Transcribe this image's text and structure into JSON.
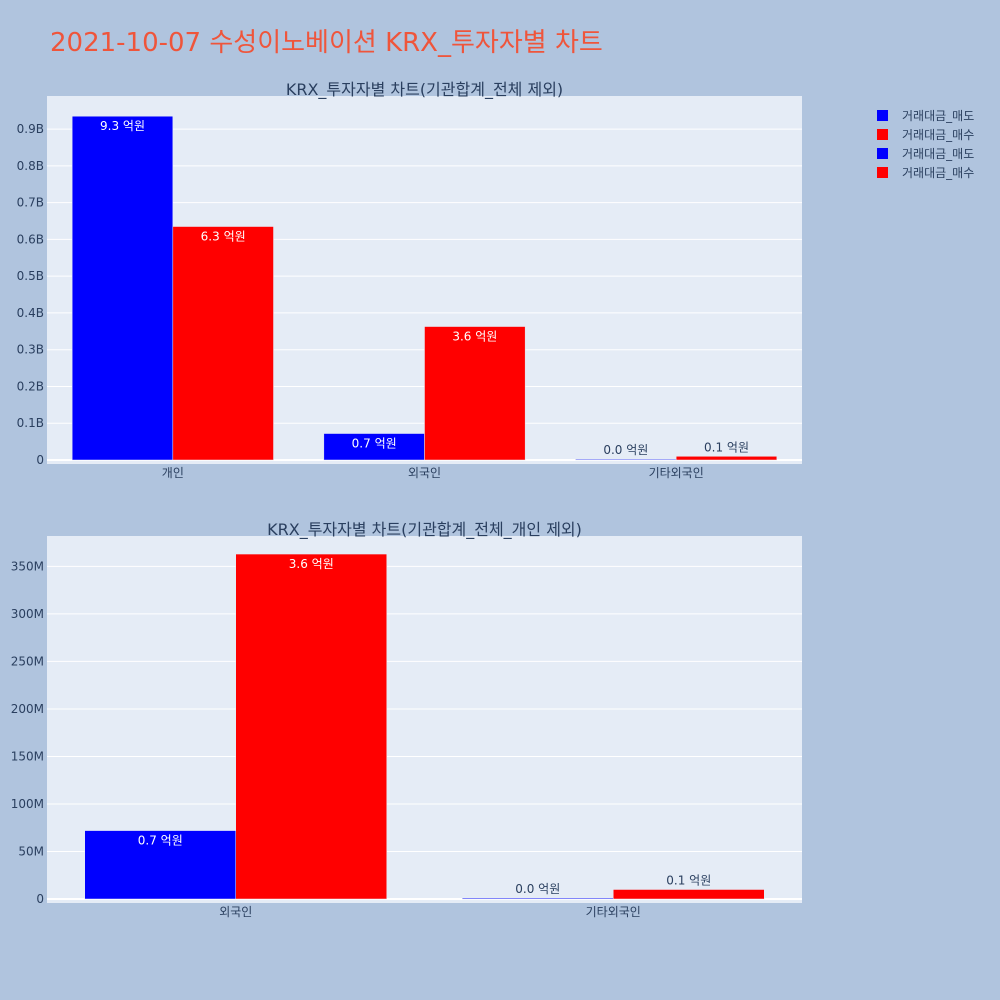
{
  "title": "2021-10-07 수성이노베이션 KRX_투자자별 차트",
  "legend": [
    {
      "name": "거래대금_매도",
      "color": "#0000ff"
    },
    {
      "name": "거래대금_매수",
      "color": "#ff0000"
    },
    {
      "name": "거래대금_매도",
      "color": "#0000ff"
    },
    {
      "name": "거래대금_매수",
      "color": "#ff0000"
    }
  ],
  "chart_data": [
    {
      "type": "bar",
      "title": "KRX_투자자별 차트(기관합계_전체 제외)",
      "categories": [
        "개인",
        "외국인",
        "기타외국인"
      ],
      "series": [
        {
          "name": "거래대금_매도",
          "color": "#0000ff",
          "values": [
            935000000,
            72000000,
            1000000
          ],
          "labels": [
            "9.3 억원",
            "0.7 억원",
            "0.0 억원"
          ]
        },
        {
          "name": "거래대금_매수",
          "color": "#ff0000",
          "values": [
            635000000,
            363000000,
            10000000
          ],
          "labels": [
            "6.3 억원",
            "3.6 억원",
            "0.1 억원"
          ]
        }
      ],
      "ylim": [
        0,
        990000000
      ],
      "yticks": [
        0,
        100000000,
        200000000,
        300000000,
        400000000,
        500000000,
        600000000,
        700000000,
        800000000,
        900000000
      ],
      "yticklabels": [
        "0",
        "0.1B",
        "0.2B",
        "0.3B",
        "0.4B",
        "0.5B",
        "0.6B",
        "0.7B",
        "0.8B",
        "0.9B"
      ],
      "grid": true
    },
    {
      "type": "bar",
      "title": "KRX_투자자별 차트(기관합계_전체_개인 제외)",
      "categories": [
        "외국인",
        "기타외국인"
      ],
      "series": [
        {
          "name": "거래대금_매도",
          "color": "#0000ff",
          "values": [
            72000000,
            1000000
          ],
          "labels": [
            "0.7 억원",
            "0.0 억원"
          ]
        },
        {
          "name": "거래대금_매수",
          "color": "#ff0000",
          "values": [
            363000000,
            10000000
          ],
          "labels": [
            "3.6 억원",
            "0.1 억원"
          ]
        }
      ],
      "ylim": [
        0,
        382000000
      ],
      "yticks": [
        0,
        50000000,
        100000000,
        150000000,
        200000000,
        250000000,
        300000000,
        350000000
      ],
      "yticklabels": [
        "0",
        "50M",
        "100M",
        "150M",
        "200M",
        "250M",
        "300M",
        "350M"
      ],
      "grid": true
    }
  ]
}
